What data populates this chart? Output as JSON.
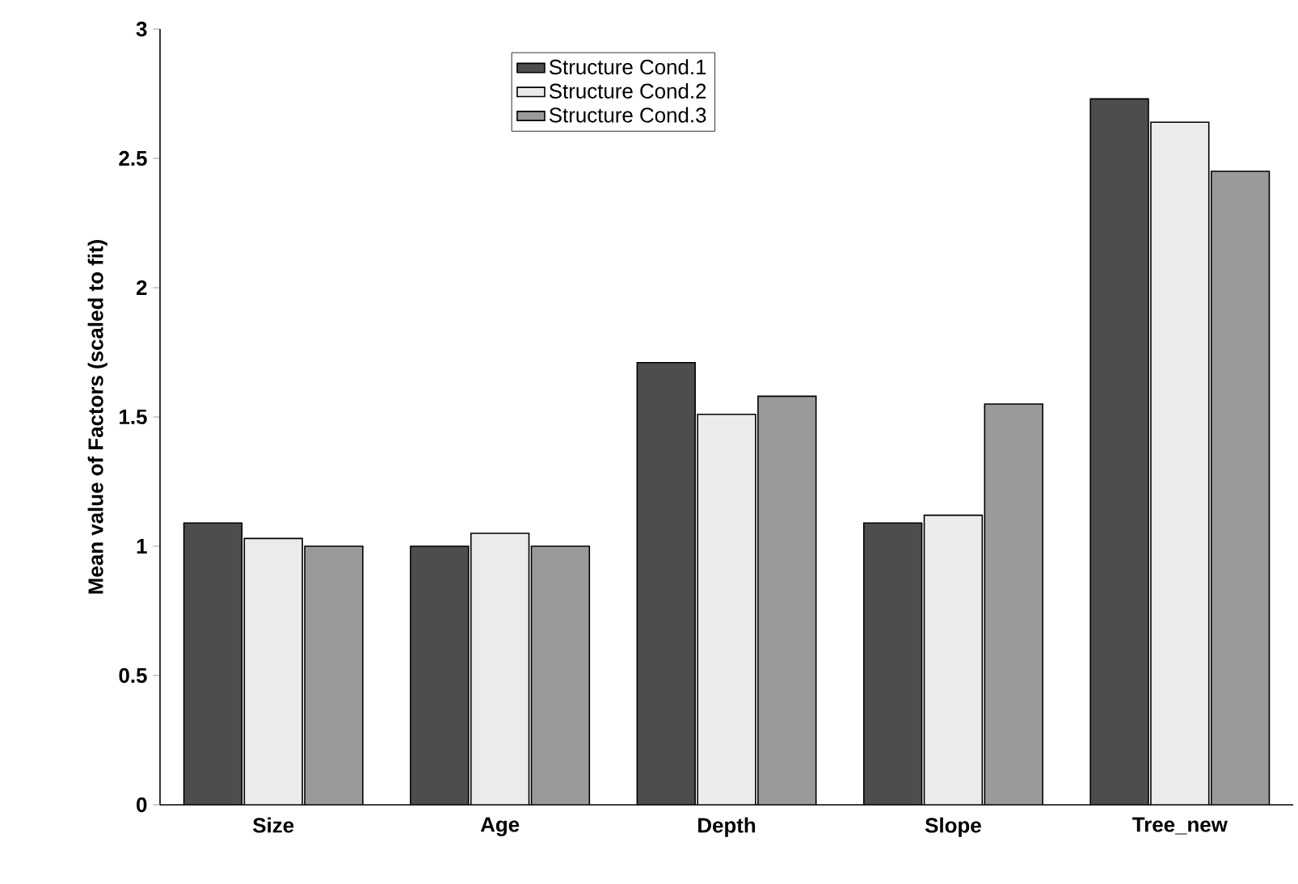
{
  "chart_data": {
    "type": "bar",
    "ylabel": "Mean value of Factors (scaled to fit)",
    "categories": [
      "Size",
      "Age",
      "Depth",
      "Slope",
      "Tree_new"
    ],
    "series": [
      {
        "name": "Structure Cond.1",
        "color": "#4d4d4d",
        "values": [
          1.09,
          1.0,
          1.71,
          1.09,
          2.73
        ]
      },
      {
        "name": "Structure Cond.2",
        "color": "#ebebeb",
        "values": [
          1.03,
          1.05,
          1.51,
          1.12,
          2.64
        ]
      },
      {
        "name": "Structure Cond.3",
        "color": "#9a9a9a",
        "values": [
          1.0,
          1.0,
          1.58,
          1.55,
          2.45
        ]
      }
    ],
    "ylim": [
      0,
      3
    ],
    "yticks": [
      0,
      0.5,
      1,
      1.5,
      2,
      2.5,
      3
    ],
    "legend": "top",
    "grid": false
  }
}
